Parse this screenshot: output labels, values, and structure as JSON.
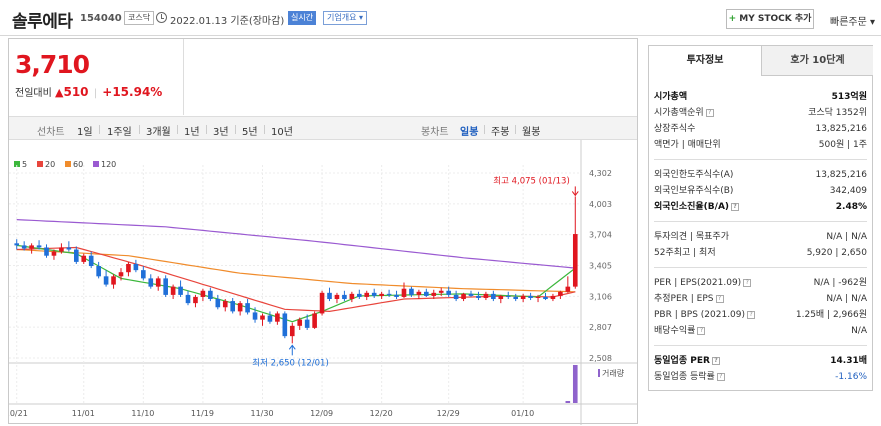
{
  "header": {
    "company": "솔루에타",
    "code": "154040",
    "market": "코스닥",
    "date_text": "2022.01.13 기준(장마감)",
    "realtime_badge": "실시간",
    "overview_badge": "기업개요 ▾",
    "mystock_label": "MY STOCK 추가",
    "quick_order_label": "빠른주문 ▾"
  },
  "price": {
    "current": "3,710",
    "change_label": "전일대비",
    "change_amount": "510",
    "change_percent": "+15.94%"
  },
  "periods": {
    "line_label": "선차트",
    "line_items": [
      "1일",
      "1주일",
      "3개월",
      "1년",
      "3년",
      "5년",
      "10년"
    ],
    "candle_label": "봉차트",
    "candle_items": [
      "일봉",
      "주봉",
      "월봉"
    ],
    "active_candle": "일봉"
  },
  "legend": [
    {
      "label": "5",
      "color": "#3cb73c"
    },
    {
      "label": "20",
      "color": "#e8453c"
    },
    {
      "label": "60",
      "color": "#f08c2c"
    },
    {
      "label": "120",
      "color": "#9a5ad1"
    }
  ],
  "chart_data": {
    "type": "candlestick",
    "y_ticks": [
      "4,302",
      "4,003",
      "3,704",
      "3,405",
      "3,106",
      "2,807",
      "2,508"
    ],
    "ylim": [
      2508,
      4302
    ],
    "x_ticks": [
      "10/21",
      "11/01",
      "11/10",
      "11/19",
      "11/30",
      "12/09",
      "12/20",
      "12/29",
      "01/10"
    ],
    "high_annotation": "최고 4,075 (01/13)",
    "low_annotation": "최저 2,650 (12/01)",
    "volume_label": "거래량",
    "up_color": "#e0161f",
    "down_color": "#1f6fd8",
    "candles": [
      [
        3620,
        3660,
        3560,
        3600
      ],
      [
        3600,
        3640,
        3550,
        3570
      ],
      [
        3570,
        3620,
        3520,
        3600
      ],
      [
        3600,
        3650,
        3560,
        3580
      ],
      [
        3580,
        3610,
        3480,
        3500
      ],
      [
        3500,
        3560,
        3460,
        3540
      ],
      [
        3540,
        3620,
        3520,
        3580
      ],
      [
        3580,
        3640,
        3540,
        3560
      ],
      [
        3560,
        3590,
        3420,
        3440
      ],
      [
        3440,
        3520,
        3420,
        3500
      ],
      [
        3500,
        3540,
        3380,
        3400
      ],
      [
        3400,
        3440,
        3280,
        3300
      ],
      [
        3300,
        3360,
        3200,
        3220
      ],
      [
        3220,
        3320,
        3180,
        3300
      ],
      [
        3300,
        3380,
        3260,
        3340
      ],
      [
        3340,
        3440,
        3300,
        3420
      ],
      [
        3420,
        3460,
        3340,
        3360
      ],
      [
        3360,
        3400,
        3260,
        3280
      ],
      [
        3280,
        3320,
        3180,
        3200
      ],
      [
        3200,
        3300,
        3160,
        3280
      ],
      [
        3280,
        3310,
        3100,
        3120
      ],
      [
        3120,
        3220,
        3080,
        3200
      ],
      [
        3200,
        3260,
        3100,
        3120
      ],
      [
        3120,
        3160,
        3020,
        3040
      ],
      [
        3040,
        3120,
        3000,
        3100
      ],
      [
        3100,
        3180,
        3060,
        3160
      ],
      [
        3160,
        3190,
        3060,
        3080
      ],
      [
        3080,
        3120,
        2980,
        3000
      ],
      [
        3000,
        3080,
        2960,
        3060
      ],
      [
        3060,
        3090,
        2940,
        2960
      ],
      [
        2960,
        3060,
        2920,
        3040
      ],
      [
        3040,
        3080,
        2930,
        2950
      ],
      [
        2950,
        3000,
        2850,
        2880
      ],
      [
        2880,
        2940,
        2820,
        2920
      ],
      [
        2920,
        2960,
        2840,
        2860
      ],
      [
        2860,
        2960,
        2830,
        2940
      ],
      [
        2940,
        2960,
        2700,
        2720
      ],
      [
        2720,
        2850,
        2650,
        2820
      ],
      [
        2820,
        2900,
        2780,
        2880
      ],
      [
        2880,
        2930,
        2780,
        2800
      ],
      [
        2800,
        2960,
        2790,
        2940
      ],
      [
        2940,
        3160,
        2920,
        3140
      ],
      [
        3140,
        3190,
        3060,
        3080
      ],
      [
        3080,
        3140,
        3040,
        3120
      ],
      [
        3120,
        3160,
        3060,
        3080
      ],
      [
        3080,
        3150,
        3050,
        3130
      ],
      [
        3130,
        3170,
        3080,
        3100
      ],
      [
        3100,
        3160,
        3070,
        3140
      ],
      [
        3140,
        3180,
        3090,
        3110
      ],
      [
        3110,
        3150,
        3080,
        3130
      ],
      [
        3130,
        3170,
        3100,
        3120
      ],
      [
        3120,
        3160,
        3080,
        3100
      ],
      [
        3100,
        3240,
        3090,
        3180
      ],
      [
        3180,
        3200,
        3100,
        3120
      ],
      [
        3120,
        3170,
        3080,
        3150
      ],
      [
        3150,
        3180,
        3100,
        3110
      ],
      [
        3110,
        3170,
        3080,
        3140
      ],
      [
        3140,
        3190,
        3110,
        3160
      ],
      [
        3160,
        3200,
        3100,
        3120
      ],
      [
        3120,
        3160,
        3060,
        3080
      ],
      [
        3080,
        3140,
        3060,
        3130
      ],
      [
        3130,
        3160,
        3100,
        3110
      ],
      [
        3110,
        3150,
        3070,
        3090
      ],
      [
        3090,
        3150,
        3070,
        3130
      ],
      [
        3130,
        3160,
        3060,
        3080
      ],
      [
        3080,
        3120,
        3040,
        3110
      ],
      [
        3110,
        3150,
        3080,
        3100
      ],
      [
        3100,
        3130,
        3060,
        3080
      ],
      [
        3080,
        3130,
        3050,
        3110
      ],
      [
        3110,
        3140,
        3070,
        3090
      ],
      [
        3090,
        3120,
        3050,
        3100
      ],
      [
        3100,
        3140,
        3070,
        3080
      ],
      [
        3080,
        3130,
        3060,
        3110
      ],
      [
        3110,
        3160,
        3080,
        3150
      ],
      [
        3150,
        3300,
        3140,
        3200
      ],
      [
        3200,
        4075,
        3180,
        3710
      ]
    ],
    "ma5_anchors": [
      [
        0,
        3600
      ],
      [
        8,
        3520
      ],
      [
        14,
        3280
      ],
      [
        22,
        3180
      ],
      [
        30,
        3020
      ],
      [
        37,
        2860
      ],
      [
        41,
        2960
      ],
      [
        46,
        3110
      ],
      [
        60,
        3130
      ],
      [
        70,
        3100
      ],
      [
        75,
        3380
      ]
    ],
    "ma20_anchors": [
      [
        0,
        3560
      ],
      [
        8,
        3580
      ],
      [
        16,
        3420
      ],
      [
        26,
        3200
      ],
      [
        36,
        2980
      ],
      [
        42,
        2960
      ],
      [
        52,
        3080
      ],
      [
        66,
        3110
      ],
      [
        72,
        3100
      ],
      [
        75,
        3150
      ]
    ],
    "ma60_anchors": [
      [
        0,
        3560
      ],
      [
        15,
        3500
      ],
      [
        30,
        3330
      ],
      [
        45,
        3230
      ],
      [
        60,
        3180
      ],
      [
        75,
        3150
      ]
    ],
    "ma120_anchors": [
      [
        0,
        3850
      ],
      [
        20,
        3780
      ],
      [
        40,
        3640
      ],
      [
        60,
        3480
      ],
      [
        75,
        3380
      ]
    ],
    "volumes": [
      0,
      0,
      0,
      0,
      0,
      0,
      0,
      0,
      0,
      0,
      0,
      0,
      0,
      0,
      0,
      0,
      0,
      0,
      0,
      0,
      0,
      0,
      0,
      0,
      0,
      0,
      0,
      0,
      0,
      0,
      0,
      0,
      0,
      0,
      0,
      0,
      0,
      0,
      0,
      0,
      0,
      0,
      0,
      0,
      0,
      0,
      0,
      0,
      0,
      0,
      0,
      0,
      0,
      0,
      0,
      0,
      0,
      0,
      0,
      0,
      0,
      0,
      0,
      0,
      0,
      0,
      0,
      0,
      0,
      0,
      0,
      0,
      0,
      0,
      5,
      95
    ]
  },
  "info": {
    "tab_invest": "투자정보",
    "tab_hoga": "호가 10단계",
    "rows": [
      {
        "k": "시가총액",
        "v": "513억원",
        "bold": true
      },
      {
        "k": "시가총액순위",
        "v": "코스닥 1352위",
        "q": true
      },
      {
        "k": "상장주식수",
        "v": "13,825,216"
      },
      {
        "k": "액면가 | 매매단위",
        "v": "500원 | 1주"
      },
      {
        "k": "외국인한도주식수(A)",
        "v": "13,825,216"
      },
      {
        "k": "외국인보유주식수(B)",
        "v": "342,409"
      },
      {
        "k": "외국인소진율(B/A)",
        "v": "2.48%",
        "bold": true,
        "q": true
      },
      {
        "k": "투자의견 | 목표주가",
        "v": "N/A | N/A"
      },
      {
        "k": "52주최고 | 최저",
        "v": "5,920 | 2,650"
      },
      {
        "k": "PER | EPS(2021.09)",
        "v": "N/A | -962원",
        "q": true
      },
      {
        "k": "추정PER | EPS",
        "v": "N/A | N/A",
        "q": true
      },
      {
        "k": "PBR | BPS (2021.09)",
        "v": "1.25배 | 2,966원",
        "q": true
      },
      {
        "k": "배당수익률",
        "v": "N/A",
        "q": true
      },
      {
        "k": "동일업종 PER",
        "v": "14.31배",
        "bold": true,
        "q": true
      },
      {
        "k": "동일업종 등락률",
        "v": "-1.16%",
        "blue": true,
        "q": true
      }
    ]
  }
}
